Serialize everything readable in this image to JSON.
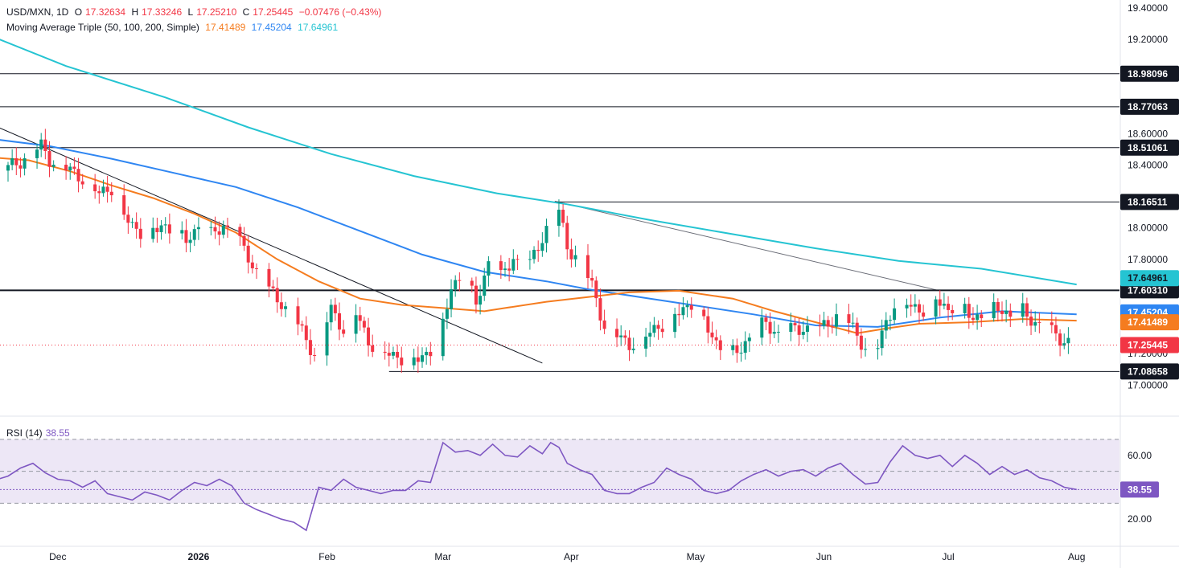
{
  "header": {
    "symbol": "USD/MXN, 1D",
    "o_label": "O",
    "o": "17.32634",
    "h_label": "H",
    "h": "17.33246",
    "l_label": "L",
    "l": "17.25210",
    "c_label": "C",
    "c": "17.25445",
    "change": "−0.07476 (−0.43%)",
    "ma_label": "Moving Average Triple (50, 100, 200, Simple)",
    "ma50": "17.41489",
    "ma100": "17.45204",
    "ma200": "17.64961",
    "rsi_label": "RSI (14)",
    "rsi_value": "38.55"
  },
  "colors": {
    "up": "#089981",
    "down": "#f23645",
    "ma50": "#f57c1f",
    "ma100": "#2f86f2",
    "ma200": "#25c4d2",
    "rsi": "#7e57c2",
    "level_tag_bg": "#131722",
    "rsi_band": "#ede7f6"
  },
  "chart_data": [
    {
      "type": "candlestick",
      "title": "USD/MXN, 1D",
      "ylim": [
        16.93,
        19.45
      ],
      "y_ticks": [
        "19.40000",
        "19.20000",
        "18.60000",
        "18.40000",
        "18.00000",
        "17.80000",
        "17.20000",
        "17.00000"
      ],
      "x_ticks": [
        "Dec",
        "2026",
        "Feb",
        "Mar",
        "Apr",
        "May",
        "Jun",
        "Jul",
        "Aug"
      ],
      "x_tick_days": [
        12,
        46,
        77,
        105,
        136,
        166,
        197,
        227,
        258
      ],
      "horizontal_levels": [
        {
          "value": 18.98096,
          "label": "18.98096"
        },
        {
          "value": 18.77063,
          "label": "18.77063"
        },
        {
          "value": 18.51061,
          "label": "18.51061"
        },
        {
          "value": 18.16511,
          "label": "18.16511"
        },
        {
          "value": 17.6031,
          "label": "17.60310"
        },
        {
          "value": 17.08658,
          "label": "17.08658"
        }
      ],
      "last_price": {
        "value": 17.25445,
        "label": "17.25445"
      },
      "ma_tags": [
        {
          "name": "ma200",
          "value": 17.64961,
          "label": "17.64961"
        },
        {
          "name": "ma100",
          "value": 17.45204,
          "label": "17.45204"
        },
        {
          "name": "ma50",
          "value": 17.41489,
          "label": "17.41489"
        }
      ],
      "trendlines": [
        {
          "from": [
            -5,
            18.67
          ],
          "to": [
            129,
            17.14
          ]
        },
        {
          "from": [
            132,
            18.17
          ],
          "to": [
            225,
            17.6
          ]
        }
      ],
      "ma_series": [
        {
          "name": "ma200",
          "points": [
            [
              -5,
              19.23
            ],
            [
              14,
              19.03
            ],
            [
              38,
              18.83
            ],
            [
              58,
              18.64
            ],
            [
              78,
              18.47
            ],
            [
              98,
              18.33
            ],
            [
              118,
              18.22
            ],
            [
              135,
              18.15
            ],
            [
              155,
              18.05
            ],
            [
              175,
              17.96
            ],
            [
              195,
              17.87
            ],
            [
              215,
              17.79
            ],
            [
              235,
              17.74
            ],
            [
              258,
              17.64
            ]
          ]
        },
        {
          "name": "ma100",
          "points": [
            [
              -5,
              18.57
            ],
            [
              10,
              18.52
            ],
            [
              25,
              18.44
            ],
            [
              40,
              18.35
            ],
            [
              55,
              18.26
            ],
            [
              70,
              18.13
            ],
            [
              85,
              17.98
            ],
            [
              100,
              17.83
            ],
            [
              115,
              17.72
            ],
            [
              130,
              17.66
            ],
            [
              140,
              17.61
            ],
            [
              155,
              17.55
            ],
            [
              165,
              17.51
            ],
            [
              180,
              17.45
            ],
            [
              195,
              17.38
            ],
            [
              210,
              17.37
            ],
            [
              225,
              17.43
            ],
            [
              240,
              17.47
            ],
            [
              258,
              17.45
            ]
          ]
        },
        {
          "name": "ma50",
          "points": [
            [
              -5,
              18.45
            ],
            [
              5,
              18.43
            ],
            [
              15,
              18.36
            ],
            [
              25,
              18.27
            ],
            [
              35,
              18.19
            ],
            [
              45,
              18.09
            ],
            [
              55,
              17.97
            ],
            [
              65,
              17.8
            ],
            [
              75,
              17.66
            ],
            [
              85,
              17.55
            ],
            [
              95,
              17.51
            ],
            [
              105,
              17.49
            ],
            [
              115,
              17.47
            ],
            [
              120,
              17.49
            ],
            [
              130,
              17.53
            ],
            [
              140,
              17.56
            ],
            [
              150,
              17.59
            ],
            [
              162,
              17.6
            ],
            [
              175,
              17.55
            ],
            [
              185,
              17.47
            ],
            [
              195,
              17.4
            ],
            [
              205,
              17.33
            ],
            [
              212,
              17.36
            ],
            [
              220,
              17.39
            ],
            [
              232,
              17.4
            ],
            [
              245,
              17.42
            ],
            [
              258,
              17.41
            ]
          ]
        },
        {
          "name": "close",
          "points": [
            [
              -5,
              18.33
            ],
            [
              0,
              18.38
            ],
            [
              5,
              18.46
            ],
            [
              8,
              18.52
            ],
            [
              10,
              18.44
            ],
            [
              14,
              18.38
            ],
            [
              18,
              18.32
            ],
            [
              22,
              18.22
            ],
            [
              25,
              18.26
            ],
            [
              28,
              18.08
            ],
            [
              31,
              17.99
            ],
            [
              34,
              17.95
            ],
            [
              37,
              18.02
            ],
            [
              40,
              17.98
            ],
            [
              43,
              17.92
            ],
            [
              46,
              18.01
            ],
            [
              49,
              17.95
            ],
            [
              52,
              18.02
            ],
            [
              55,
              17.94
            ],
            [
              58,
              17.82
            ],
            [
              62,
              17.62
            ],
            [
              66,
              17.53
            ],
            [
              70,
              17.38
            ],
            [
              74,
              17.2
            ],
            [
              78,
              17.48
            ],
            [
              81,
              17.36
            ],
            [
              84,
              17.46
            ],
            [
              87,
              17.28
            ],
            [
              90,
              17.22
            ],
            [
              94,
              17.18
            ],
            [
              98,
              17.16
            ],
            [
              101,
              17.2
            ],
            [
              104,
              17.26
            ],
            [
              107,
              17.63
            ],
            [
              110,
              17.7
            ],
            [
              113,
              17.52
            ],
            [
              116,
              17.78
            ],
            [
              119,
              17.68
            ],
            [
              122,
              17.82
            ],
            [
              125,
              17.7
            ],
            [
              128,
              17.89
            ],
            [
              131,
              18.05
            ],
            [
              133,
              18.1
            ],
            [
              135,
              17.88
            ],
            [
              138,
              17.8
            ],
            [
              141,
              17.63
            ],
            [
              144,
              17.38
            ],
            [
              147,
              17.32
            ],
            [
              150,
              17.26
            ],
            [
              153,
              17.3
            ],
            [
              156,
              17.36
            ],
            [
              159,
              17.4
            ],
            [
              162,
              17.47
            ],
            [
              165,
              17.52
            ],
            [
              168,
              17.41
            ],
            [
              171,
              17.27
            ],
            [
              174,
              17.19
            ],
            [
              177,
              17.24
            ],
            [
              180,
              17.33
            ],
            [
              183,
              17.4
            ],
            [
              186,
              17.32
            ],
            [
              189,
              17.35
            ],
            [
              192,
              17.37
            ],
            [
              195,
              17.33
            ],
            [
              198,
              17.4
            ],
            [
              201,
              17.46
            ],
            [
              204,
              17.36
            ],
            [
              207,
              17.24
            ],
            [
              210,
              17.25
            ],
            [
              212,
              17.4
            ],
            [
              215,
              17.58
            ],
            [
              218,
              17.5
            ],
            [
              221,
              17.48
            ],
            [
              224,
              17.55
            ],
            [
              227,
              17.48
            ],
            [
              230,
              17.54
            ],
            [
              233,
              17.42
            ],
            [
              236,
              17.47
            ],
            [
              239,
              17.5
            ],
            [
              242,
              17.44
            ],
            [
              245,
              17.47
            ],
            [
              248,
              17.4
            ],
            [
              251,
              17.35
            ],
            [
              254,
              17.3
            ],
            [
              258,
              17.25
            ]
          ]
        }
      ]
    },
    {
      "type": "line",
      "title": "RSI (14)",
      "ylim": [
        8,
        76
      ],
      "y_ticks": [
        "60.00",
        "20.00"
      ],
      "y_tick_values": [
        60,
        20
      ],
      "band": [
        30,
        70
      ],
      "mid": 50,
      "last_value": {
        "value": 38.55,
        "label": "38.55"
      },
      "series": [
        {
          "points": [
            [
              -5,
              43
            ],
            [
              0,
              47
            ],
            [
              3,
              52
            ],
            [
              6,
              55
            ],
            [
              9,
              49
            ],
            [
              12,
              45
            ],
            [
              15,
              44
            ],
            [
              18,
              40
            ],
            [
              21,
              44
            ],
            [
              24,
              36
            ],
            [
              27,
              34
            ],
            [
              30,
              32
            ],
            [
              33,
              37
            ],
            [
              36,
              35
            ],
            [
              39,
              32
            ],
            [
              42,
              38
            ],
            [
              45,
              43
            ],
            [
              48,
              41
            ],
            [
              51,
              45
            ],
            [
              54,
              41
            ],
            [
              57,
              30
            ],
            [
              60,
              26
            ],
            [
              63,
              23
            ],
            [
              66,
              20
            ],
            [
              69,
              18
            ],
            [
              72,
              13
            ],
            [
              75,
              40
            ],
            [
              78,
              38
            ],
            [
              81,
              45
            ],
            [
              84,
              40
            ],
            [
              87,
              38
            ],
            [
              90,
              36
            ],
            [
              93,
              38
            ],
            [
              96,
              38
            ],
            [
              99,
              44
            ],
            [
              102,
              43
            ],
            [
              105,
              68
            ],
            [
              108,
              62
            ],
            [
              111,
              63
            ],
            [
              114,
              60
            ],
            [
              117,
              67
            ],
            [
              120,
              60
            ],
            [
              123,
              59
            ],
            [
              126,
              66
            ],
            [
              129,
              61
            ],
            [
              131,
              68
            ],
            [
              133,
              65
            ],
            [
              135,
              55
            ],
            [
              138,
              51
            ],
            [
              141,
              48
            ],
            [
              144,
              38
            ],
            [
              147,
              36
            ],
            [
              150,
              36
            ],
            [
              153,
              40
            ],
            [
              156,
              43
            ],
            [
              159,
              52
            ],
            [
              162,
              48
            ],
            [
              165,
              45
            ],
            [
              168,
              38
            ],
            [
              171,
              36
            ],
            [
              174,
              38
            ],
            [
              177,
              44
            ],
            [
              180,
              48
            ],
            [
              183,
              51
            ],
            [
              186,
              47
            ],
            [
              189,
              50
            ],
            [
              192,
              51
            ],
            [
              195,
              47
            ],
            [
              198,
              52
            ],
            [
              201,
              55
            ],
            [
              204,
              48
            ],
            [
              207,
              42
            ],
            [
              210,
              43
            ],
            [
              213,
              56
            ],
            [
              216,
              66
            ],
            [
              219,
              60
            ],
            [
              222,
              58
            ],
            [
              225,
              60
            ],
            [
              228,
              53
            ],
            [
              231,
              60
            ],
            [
              234,
              55
            ],
            [
              237,
              48
            ],
            [
              240,
              53
            ],
            [
              243,
              48
            ],
            [
              246,
              51
            ],
            [
              249,
              46
            ],
            [
              252,
              44
            ],
            [
              255,
              40
            ],
            [
              258,
              38.55
            ]
          ]
        }
      ]
    }
  ]
}
